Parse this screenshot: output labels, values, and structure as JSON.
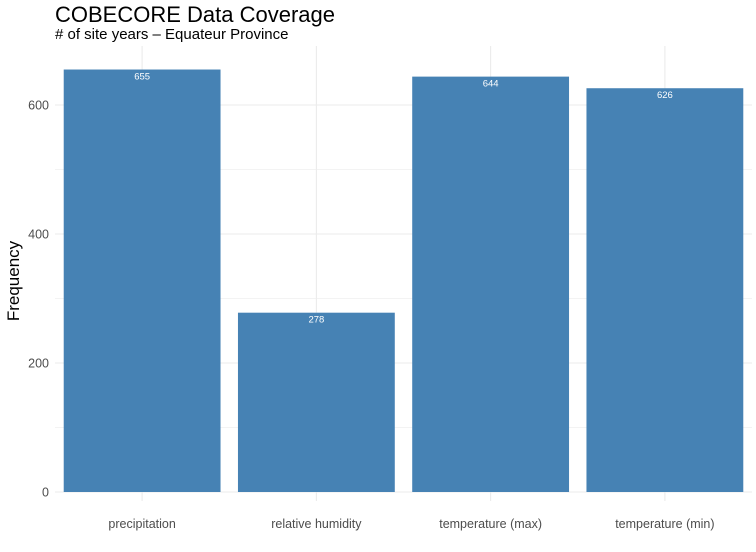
{
  "chart_data": {
    "type": "bar",
    "title": "COBECORE Data Coverage",
    "subtitle": "# of site years – Equateur Province",
    "xlabel": "",
    "ylabel": "Frequency",
    "categories": [
      "precipitation",
      "relative humidity",
      "temperature (max)",
      "temperature (min)"
    ],
    "values": [
      655,
      278,
      644,
      626
    ],
    "data_labels": [
      "655",
      "278",
      "644",
      "626"
    ],
    "y_ticks": [
      0,
      200,
      400,
      600
    ],
    "ylim": [
      0,
      688
    ],
    "grid": true,
    "legend": "none",
    "bar_color": "#4682B4",
    "data_label_color": "#FFFFFF"
  }
}
